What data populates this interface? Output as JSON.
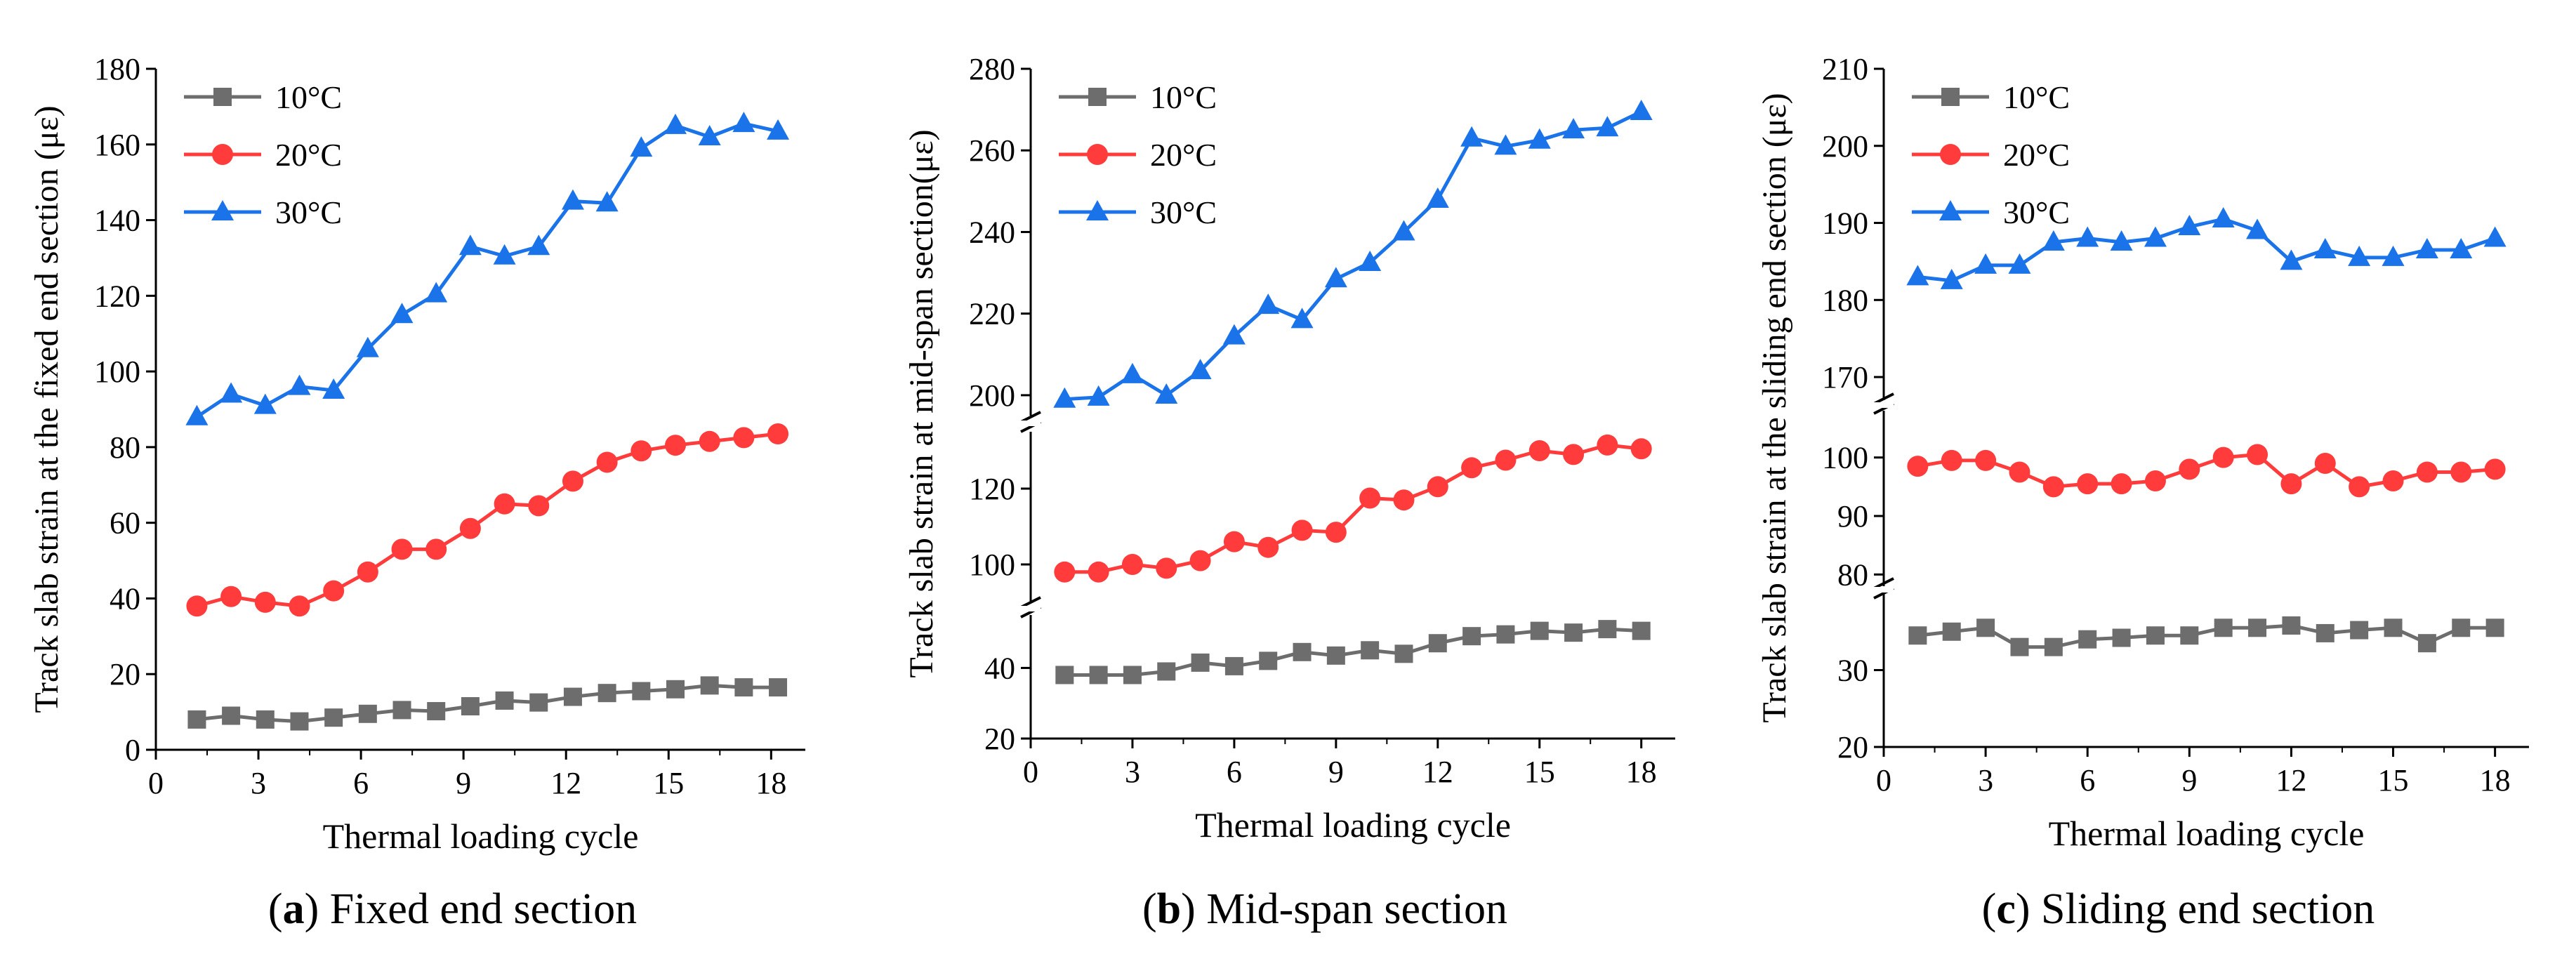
{
  "chart_data": [
    {
      "type": "line",
      "panel_letter": "a",
      "caption": "Fixed end section",
      "xlabel": "Thermal loading cycle",
      "ylabel": "Track slab strain at the fixed end section (με)",
      "xlim": [
        0,
        19
      ],
      "x_ticks": [
        0,
        3,
        6,
        9,
        12,
        15,
        18
      ],
      "y_segments": [
        {
          "range": [
            0,
            180
          ],
          "ticks": [
            0,
            20,
            40,
            60,
            80,
            100,
            120,
            140,
            160,
            180
          ]
        }
      ],
      "x": [
        1.2,
        2.2,
        3.2,
        4.2,
        5.2,
        6.2,
        7.2,
        8.2,
        9.2,
        10.2,
        11.2,
        12.2,
        13.2,
        14.2,
        15.2,
        16.2,
        17.2,
        18.2
      ],
      "series": [
        {
          "name": "10°C",
          "color": "#6d6d6d",
          "marker": "square",
          "values": [
            8,
            9,
            8,
            7.5,
            8.5,
            9.5,
            10.5,
            10.2,
            11.5,
            13,
            12.5,
            14,
            15,
            15.5,
            16,
            17,
            16.5,
            16.5
          ]
        },
        {
          "name": "20°C",
          "color": "#ff3b3b",
          "marker": "circle",
          "values": [
            38,
            40.5,
            39,
            38,
            42,
            47,
            53,
            53,
            58.5,
            65,
            64.5,
            71,
            76,
            79,
            80.5,
            81.5,
            82.5,
            83.5
          ]
        },
        {
          "name": "30°C",
          "color": "#1a73e8",
          "marker": "triangle",
          "values": [
            88,
            94,
            91,
            96,
            95,
            106,
            115,
            120.5,
            133,
            130.5,
            133,
            145,
            144.5,
            159,
            165,
            162,
            165.5,
            163.5
          ]
        }
      ],
      "legend": "top-left"
    },
    {
      "type": "line",
      "panel_letter": "b",
      "caption": "Mid-span section",
      "xlabel": "Thermal loading cycle",
      "ylabel": "Track slab strain at mid-span section(με)",
      "xlim": [
        0,
        19
      ],
      "x_ticks": [
        0,
        3,
        6,
        9,
        12,
        15,
        18
      ],
      "y_segments": [
        {
          "range": [
            20,
            55
          ],
          "ticks": [
            20,
            40
          ]
        },
        {
          "range": [
            90,
            135
          ],
          "ticks": [
            100,
            120
          ]
        },
        {
          "range": [
            195,
            280
          ],
          "ticks": [
            200,
            220,
            240,
            260,
            280
          ]
        }
      ],
      "x": [
        1,
        2,
        3,
        4,
        5,
        6,
        7,
        8,
        9,
        10,
        11,
        12,
        13,
        14,
        15,
        16,
        17,
        18
      ],
      "series": [
        {
          "name": "10°C",
          "color": "#6d6d6d",
          "marker": "square",
          "values": [
            38,
            38,
            38,
            39,
            41.5,
            40.5,
            42,
            44.5,
            43.5,
            45,
            44,
            47,
            49,
            49.5,
            50.5,
            50,
            51,
            50.5
          ]
        },
        {
          "name": "20°C",
          "color": "#ff3b3b",
          "marker": "circle",
          "values": [
            98,
            98,
            100,
            99,
            101,
            106,
            104.5,
            109,
            108.5,
            117.5,
            117,
            120.5,
            125.5,
            127.5,
            130,
            129,
            131.5,
            130.5
          ]
        },
        {
          "name": "30°C",
          "color": "#1a73e8",
          "marker": "triangle",
          "values": [
            199,
            199.5,
            205,
            200,
            206,
            214.5,
            222,
            218.5,
            228.5,
            232.5,
            240,
            248,
            263,
            261,
            262.5,
            265,
            265.5,
            269.5
          ]
        }
      ],
      "legend": "top-left"
    },
    {
      "type": "line",
      "panel_letter": "c",
      "caption": "Sliding end section",
      "xlabel": "Thermal loading cycle",
      "ylabel": "Track slab strain at the sliding end section (με)",
      "xlim": [
        0,
        19
      ],
      "x_ticks": [
        0,
        3,
        6,
        9,
        12,
        15,
        18
      ],
      "y_segments": [
        {
          "range": [
            20,
            40
          ],
          "ticks": [
            20,
            30
          ]
        },
        {
          "range": [
            78,
            108
          ],
          "ticks": [
            80,
            90,
            100
          ]
        },
        {
          "range": [
            167,
            210
          ],
          "ticks": [
            170,
            180,
            190,
            200,
            210
          ]
        }
      ],
      "x": [
        1,
        2,
        3,
        4,
        5,
        6,
        7,
        8,
        9,
        10,
        11,
        12,
        13,
        14,
        15,
        16,
        17,
        18
      ],
      "series": [
        {
          "name": "10°C",
          "color": "#6d6d6d",
          "marker": "square",
          "values": [
            34.5,
            35,
            35.5,
            33,
            33,
            34,
            34.2,
            34.5,
            34.5,
            35.5,
            35.5,
            35.8,
            34.8,
            35.2,
            35.5,
            33.5,
            35.5,
            35.5
          ]
        },
        {
          "name": "20°C",
          "color": "#ff3b3b",
          "marker": "circle",
          "values": [
            98.5,
            99.5,
            99.5,
            97.5,
            95,
            95.5,
            95.5,
            96,
            98,
            100,
            100.5,
            95.5,
            99,
            95,
            96,
            97.5,
            97.5,
            98
          ]
        },
        {
          "name": "30°C",
          "color": "#1a73e8",
          "marker": "triangle",
          "values": [
            183,
            182.5,
            184.5,
            184.5,
            187.5,
            188,
            187.5,
            188,
            189.5,
            190.5,
            189,
            185,
            186.5,
            185.5,
            185.5,
            186.5,
            186.5,
            188
          ]
        }
      ],
      "legend": "top-left"
    }
  ]
}
